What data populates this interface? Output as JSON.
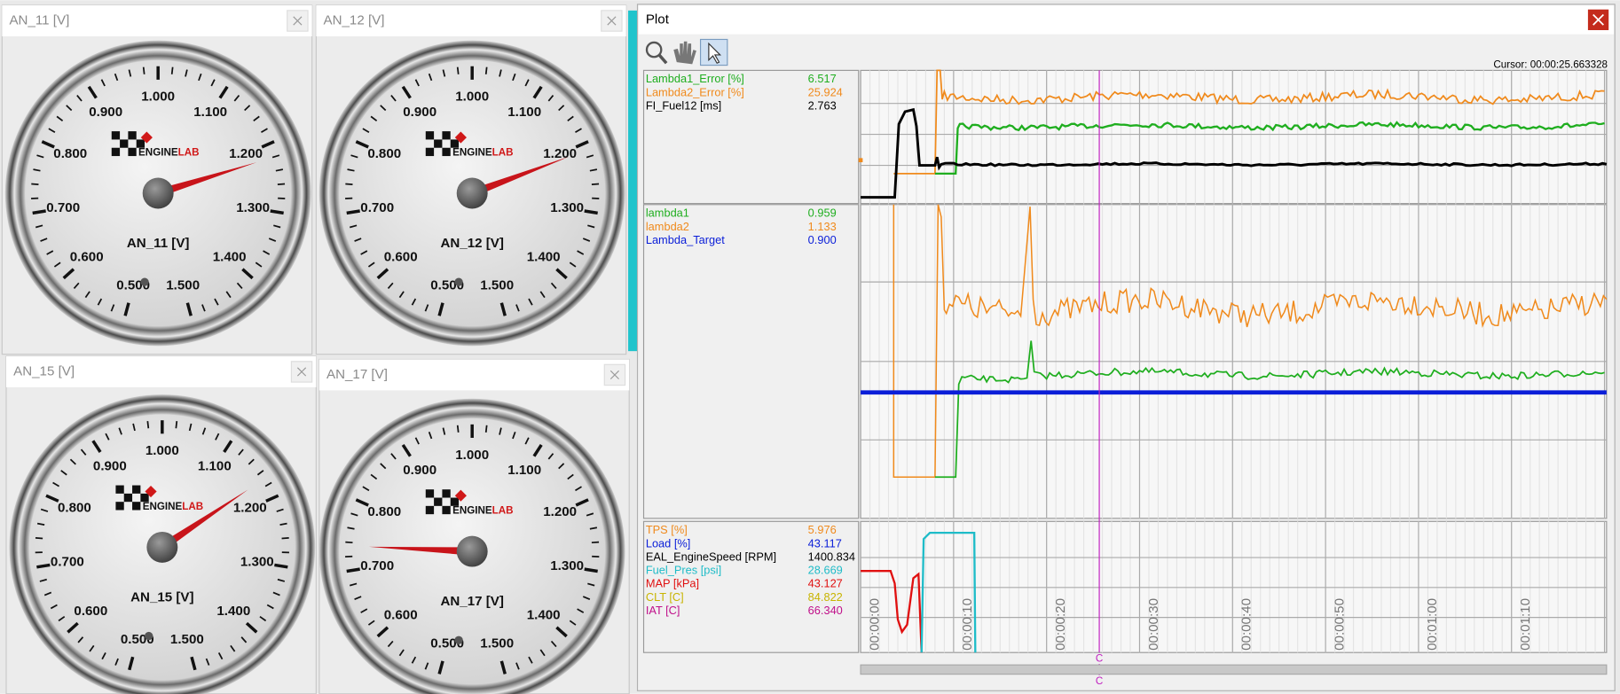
{
  "gauges": [
    {
      "title": "AN_11 [V]",
      "label": "AN_11 [V]",
      "brand_a": "ENGINE",
      "brand_b": "LAB",
      "scale": [
        "0.500",
        "0.600",
        "0.700",
        "0.800",
        "0.900",
        "1.000",
        "1.100",
        "1.200",
        "1.300",
        "1.400",
        "1.500"
      ]
    },
    {
      "title": "AN_12 [V]",
      "label": "AN_12 [V]",
      "brand_a": "ENGINE",
      "brand_b": "LAB",
      "scale": [
        "0.500",
        "0.600",
        "0.700",
        "0.800",
        "0.900",
        "1.000",
        "1.100",
        "1.200",
        "1.300",
        "1.400",
        "1.500"
      ]
    },
    {
      "title": "AN_15 [V]",
      "label": "AN_15 [V]",
      "brand_a": "ENGINE",
      "brand_b": "LAB",
      "scale": [
        "0.500",
        "0.600",
        "0.700",
        "0.800",
        "0.900",
        "1.000",
        "1.100",
        "1.200",
        "1.300",
        "1.400",
        "1.500"
      ]
    },
    {
      "title": "AN_17 [V]",
      "label": "AN_17 [V]",
      "brand_a": "ENGINE",
      "brand_b": "LAB",
      "scale": [
        "0.500",
        "0.600",
        "0.700",
        "0.800",
        "0.900",
        "1.000",
        "1.100",
        "1.200",
        "1.300",
        "1.400",
        "1.500"
      ]
    }
  ],
  "plot": {
    "title": "Plot",
    "cursor": "Cursor: 00:00:25.663328",
    "cursor_marker": "C",
    "panels": [
      {
        "channels": [
          {
            "name": "Lambda1_Error [%]",
            "value": "6.517",
            "color": "#1fae1f"
          },
          {
            "name": "Lambda2_Error [%]",
            "value": "25.924",
            "color": "#f08a1c"
          },
          {
            "name": "FI_Fuel12 [ms]",
            "value": "2.763",
            "color": "#000000"
          }
        ]
      },
      {
        "channels": [
          {
            "name": "lambda1",
            "value": "0.959",
            "color": "#1fae1f"
          },
          {
            "name": "lambda2",
            "value": "1.133",
            "color": "#f08a1c"
          },
          {
            "name": "Lambda_Target",
            "value": "0.900",
            "color": "#0a1ed8"
          }
        ]
      },
      {
        "channels": [
          {
            "name": "TPS [%]",
            "value": "5.976",
            "color": "#f08a1c"
          },
          {
            "name": "Load [%]",
            "value": "43.117",
            "color": "#0a1ed8"
          },
          {
            "name": "EAL_EngineSpeed [RPM]",
            "value": "1400.834",
            "color": "#000000"
          },
          {
            "name": "Fuel_Pres [psi]",
            "value": "28.669",
            "color": "#1fbcc8"
          },
          {
            "name": "MAP [kPa]",
            "value": "43.127",
            "color": "#e01010"
          },
          {
            "name": "CLT [C]",
            "value": "84.822",
            "color": "#c8b400"
          },
          {
            "name": "IAT [C]",
            "value": "66.340",
            "color": "#c0108a"
          }
        ]
      }
    ],
    "time_labels": [
      "00:00:00",
      "00:00:10",
      "00:00:20",
      "00:00:30",
      "00:00:40",
      "00:00:50",
      "00:01:00",
      "00:01:10"
    ]
  }
}
